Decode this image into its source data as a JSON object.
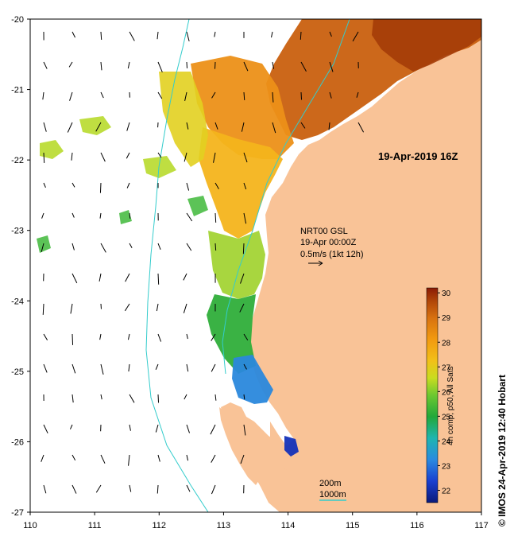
{
  "map": {
    "title": "19-Apr-2019 16Z",
    "credit": "© IMOS 24-Apr-2019 12:40 Hobart",
    "current_info": {
      "line1": "NRT00 GSL",
      "line2": "19-Apr 00:00Z",
      "line3": "0.5m/s (1kt 12h)"
    },
    "depth_legend": {
      "shallow": "200m",
      "deep": "1000m",
      "contour_color": "#33cccc"
    },
    "lon_ticks": [
      "110",
      "111",
      "112",
      "113",
      "114",
      "115",
      "116",
      "117"
    ],
    "lat_ticks": [
      "-20",
      "-21",
      "-22",
      "-23",
      "-24",
      "-25",
      "-26",
      "-27"
    ],
    "colorbar": {
      "label": "4h comp, p50, All Sats",
      "ticks": [
        "30",
        "29",
        "28",
        "27",
        "26",
        "25",
        "24",
        "23",
        "22"
      ],
      "min": 21.5,
      "max": 30.2
    },
    "colors": {
      "land": "#f9c397",
      "ocean": "#ffffff",
      "contour": "#33cccc"
    }
  }
}
